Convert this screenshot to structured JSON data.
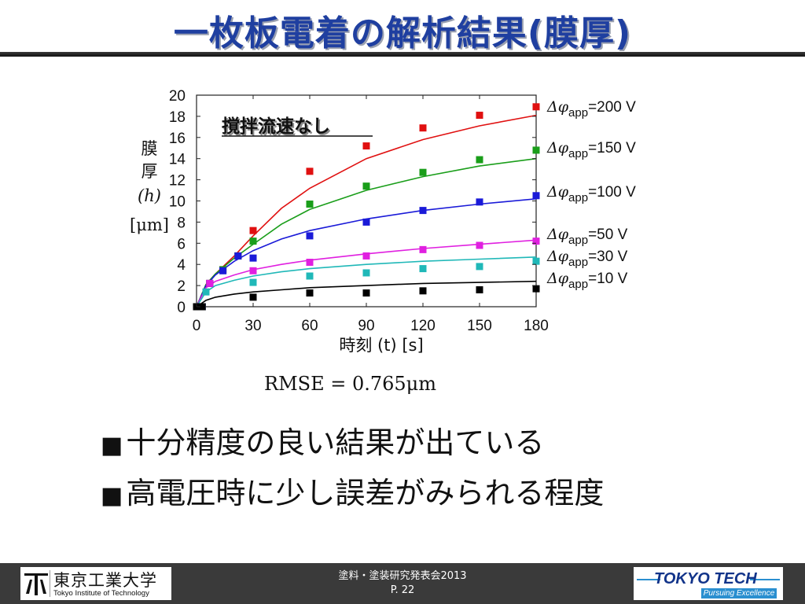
{
  "slide": {
    "title": "一枚板電着の解析結果(膜厚)",
    "rmse": "RMSE = 0.765μm",
    "bullets": [
      "十分精度の良い結果が出ている",
      "高電圧時に少し誤差がみられる程度"
    ],
    "bullet_mark": "■"
  },
  "footer": {
    "org_jp": "東京工業大学",
    "org_en": "Tokyo Institute of Technology",
    "event": "塗料・塗装研究発表会2013",
    "page": "P. 22",
    "brand": "TOKYO TECH",
    "tagline": "Pursuing Excellence"
  },
  "colors": {
    "title": "#1f3fa0",
    "footer_bg": "#3a3a3a"
  },
  "chart_data": {
    "type": "scatter",
    "annotation": "撹拌流速なし",
    "xlabel": "時刻 (t) [s]",
    "ylabel": [
      "膜",
      "厚",
      "(h)",
      "[μm]"
    ],
    "xlim": [
      0,
      180
    ],
    "ylim": [
      0,
      20
    ],
    "xticks": [
      0,
      30,
      60,
      90,
      120,
      150,
      180
    ],
    "yticks": [
      0,
      2,
      4,
      6,
      8,
      10,
      12,
      14,
      16,
      18,
      20
    ],
    "series": [
      {
        "name": "Δφapp=200 V",
        "label_main": "Δφ",
        "label_sub": "app",
        "label_tail": "=200 V",
        "color": "#e01010",
        "points": [
          [
            0,
            0
          ],
          [
            3,
            0
          ],
          [
            7,
            2.2
          ],
          [
            14,
            3.5
          ],
          [
            22,
            4.8
          ],
          [
            30,
            7.2
          ],
          [
            60,
            12.8
          ],
          [
            90,
            15.2
          ],
          [
            120,
            16.9
          ],
          [
            150,
            18.1
          ],
          [
            180,
            18.9
          ]
        ],
        "fit": [
          [
            0,
            0
          ],
          [
            5,
            2.1
          ],
          [
            10,
            3.1
          ],
          [
            20,
            4.8
          ],
          [
            30,
            6.7
          ],
          [
            45,
            9.3
          ],
          [
            60,
            11.2
          ],
          [
            90,
            14.0
          ],
          [
            120,
            15.8
          ],
          [
            150,
            17.1
          ],
          [
            180,
            18.1
          ]
        ]
      },
      {
        "name": "Δφapp=150 V",
        "label_main": "Δφ",
        "label_sub": "app",
        "label_tail": "=150 V",
        "color": "#1a9e1a",
        "points": [
          [
            0,
            0
          ],
          [
            3,
            0
          ],
          [
            7,
            2.2
          ],
          [
            14,
            3.5
          ],
          [
            22,
            4.8
          ],
          [
            30,
            6.2
          ],
          [
            60,
            9.7
          ],
          [
            90,
            11.4
          ],
          [
            120,
            12.7
          ],
          [
            150,
            13.9
          ],
          [
            180,
            14.8
          ]
        ],
        "fit": [
          [
            0,
            0
          ],
          [
            5,
            2.1
          ],
          [
            10,
            3.1
          ],
          [
            20,
            4.6
          ],
          [
            30,
            5.9
          ],
          [
            45,
            7.8
          ],
          [
            60,
            9.2
          ],
          [
            90,
            11.0
          ],
          [
            120,
            12.3
          ],
          [
            150,
            13.3
          ],
          [
            180,
            14.0
          ]
        ]
      },
      {
        "name": "Δφapp=100 V",
        "label_main": "Δφ",
        "label_sub": "app",
        "label_tail": "=100 V",
        "color": "#1a1ad8",
        "points": [
          [
            0,
            0
          ],
          [
            3,
            0
          ],
          [
            7,
            2.2
          ],
          [
            14,
            3.4
          ],
          [
            22,
            4.8
          ],
          [
            30,
            4.6
          ],
          [
            60,
            6.7
          ],
          [
            90,
            8.0
          ],
          [
            120,
            9.1
          ],
          [
            150,
            9.9
          ],
          [
            180,
            10.5
          ]
        ],
        "fit": [
          [
            0,
            0
          ],
          [
            5,
            2.0
          ],
          [
            10,
            3.0
          ],
          [
            20,
            4.3
          ],
          [
            30,
            5.3
          ],
          [
            45,
            6.4
          ],
          [
            60,
            7.2
          ],
          [
            90,
            8.3
          ],
          [
            120,
            9.1
          ],
          [
            150,
            9.7
          ],
          [
            180,
            10.2
          ]
        ]
      },
      {
        "name": "Δφapp=50 V",
        "label_main": "Δφ",
        "label_sub": "app",
        "label_tail": "=50 V",
        "color": "#e020e0",
        "points": [
          [
            0,
            0
          ],
          [
            3,
            0
          ],
          [
            7,
            2.2
          ],
          [
            30,
            3.4
          ],
          [
            60,
            4.2
          ],
          [
            90,
            4.8
          ],
          [
            120,
            5.4
          ],
          [
            150,
            5.8
          ],
          [
            180,
            6.2
          ]
        ],
        "fit": [
          [
            0,
            0
          ],
          [
            5,
            1.8
          ],
          [
            10,
            2.4
          ],
          [
            20,
            3.0
          ],
          [
            30,
            3.5
          ],
          [
            45,
            4.0
          ],
          [
            60,
            4.4
          ],
          [
            90,
            5.0
          ],
          [
            120,
            5.5
          ],
          [
            150,
            5.9
          ],
          [
            180,
            6.3
          ]
        ]
      },
      {
        "name": "Δφapp=30 V",
        "label_main": "Δφ",
        "label_sub": "app",
        "label_tail": "=30 V",
        "color": "#20b8b8",
        "points": [
          [
            0,
            0
          ],
          [
            3,
            0
          ],
          [
            5,
            1.4
          ],
          [
            30,
            2.3
          ],
          [
            60,
            2.9
          ],
          [
            90,
            3.2
          ],
          [
            120,
            3.6
          ],
          [
            150,
            3.8
          ],
          [
            180,
            4.3
          ]
        ],
        "fit": [
          [
            0,
            0
          ],
          [
            5,
            1.4
          ],
          [
            10,
            2.0
          ],
          [
            20,
            2.5
          ],
          [
            30,
            2.9
          ],
          [
            45,
            3.3
          ],
          [
            60,
            3.6
          ],
          [
            90,
            4.0
          ],
          [
            120,
            4.3
          ],
          [
            150,
            4.5
          ],
          [
            180,
            4.7
          ]
        ]
      },
      {
        "name": "Δφapp=10 V",
        "label_main": "Δφ",
        "label_sub": "app",
        "label_tail": "=10 V",
        "color": "#000000",
        "points": [
          [
            0,
            0
          ],
          [
            3,
            0
          ],
          [
            30,
            0.9
          ],
          [
            60,
            1.3
          ],
          [
            90,
            1.3
          ],
          [
            120,
            1.5
          ],
          [
            150,
            1.6
          ],
          [
            180,
            1.7
          ]
        ],
        "fit": [
          [
            0,
            0
          ],
          [
            5,
            0.6
          ],
          [
            10,
            0.9
          ],
          [
            20,
            1.2
          ],
          [
            30,
            1.4
          ],
          [
            45,
            1.6
          ],
          [
            60,
            1.8
          ],
          [
            90,
            2.0
          ],
          [
            120,
            2.2
          ],
          [
            150,
            2.3
          ],
          [
            180,
            2.4
          ]
        ]
      }
    ]
  }
}
